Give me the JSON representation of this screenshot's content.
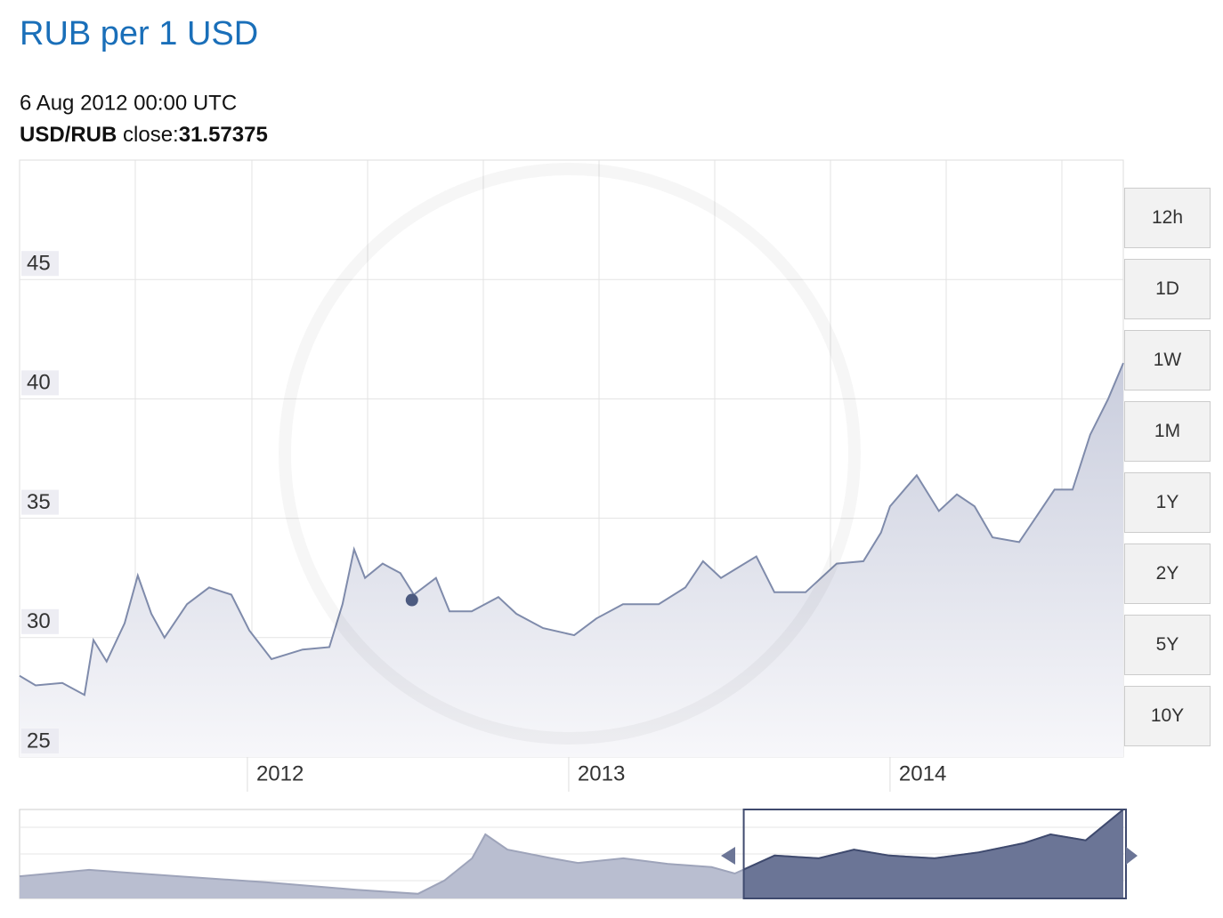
{
  "title": "RUB per 1 USD",
  "tooltip": {
    "date": "6 Aug 2012 00:00 UTC",
    "pair": "USD/RUB",
    "label": "close:",
    "value": 31.57375,
    "x": 2012.512
  },
  "ranges": [
    "12h",
    "1D",
    "1W",
    "1M",
    "1Y",
    "2Y",
    "5Y",
    "10Y"
  ],
  "chart_data": [
    {
      "type": "area",
      "color": "#7f8bab",
      "x": [
        2011.291,
        2011.341,
        2011.424,
        2011.493,
        2011.521,
        2011.562,
        2011.618,
        2011.659,
        2011.701,
        2011.742,
        2011.812,
        2011.881,
        2011.95,
        2012.006,
        2012.075,
        2012.172,
        2012.255,
        2012.296,
        2012.332,
        2012.366,
        2012.421,
        2012.476,
        2012.518,
        2012.587,
        2012.629,
        2012.698,
        2012.781,
        2012.837,
        2012.92,
        2013.017,
        2013.086,
        2013.169,
        2013.28,
        2013.363,
        2013.418,
        2013.474,
        2013.584,
        2013.64,
        2013.737,
        2013.834,
        2013.917,
        2013.972,
        2014.0,
        2014.083,
        2014.152,
        2014.208,
        2014.263,
        2014.319,
        2014.402,
        2014.457,
        2014.512,
        2014.568,
        2014.623,
        2014.679,
        2014.726
      ],
      "values": [
        28.4,
        28.0,
        28.1,
        27.6,
        29.9,
        29.0,
        30.6,
        32.6,
        31.0,
        30.0,
        31.4,
        32.1,
        31.8,
        30.3,
        29.1,
        29.5,
        29.6,
        31.4,
        33.7,
        32.5,
        33.1,
        32.7,
        31.8,
        32.5,
        31.1,
        31.1,
        31.7,
        31.0,
        30.4,
        30.1,
        30.8,
        31.4,
        31.4,
        32.1,
        33.2,
        32.5,
        33.4,
        31.9,
        31.9,
        33.1,
        33.2,
        34.4,
        35.5,
        36.8,
        35.3,
        36.0,
        35.5,
        34.2,
        34.0,
        35.1,
        36.2,
        36.2,
        38.5,
        40.0,
        41.5
      ],
      "xlim": [
        2011.291,
        2014.726
      ],
      "xticks": [
        2012,
        2013,
        2014
      ],
      "ylim": [
        25,
        50
      ],
      "yticks": [
        25,
        30,
        35,
        40,
        45
      ],
      "grid": true
    },
    {
      "type": "area",
      "color": "#6b7596",
      "x": [
        2004.73,
        2005.36,
        2006.17,
        2006.97,
        2007.78,
        2008.34,
        2008.58,
        2008.83,
        2008.95,
        2009.15,
        2009.55,
        2009.79,
        2010.2,
        2010.6,
        2011.0,
        2011.21,
        2011.57,
        2011.97,
        2012.29,
        2012.61,
        2013.02,
        2013.42,
        2013.83,
        2014.07,
        2014.39,
        2014.73
      ],
      "values": [
        27.0,
        28.4,
        27.0,
        25.7,
        24.1,
        23.2,
        26.1,
        30.9,
        36.1,
        32.8,
        30.9,
        29.9,
        30.9,
        29.7,
        29.0,
        27.6,
        31.5,
        30.9,
        32.8,
        31.5,
        30.9,
        32.2,
        34.2,
        36.1,
        34.8,
        41.5
      ],
      "xlim": [
        2004.73,
        2014.73
      ],
      "ylim": [
        22.2,
        41.5
      ]
    }
  ]
}
